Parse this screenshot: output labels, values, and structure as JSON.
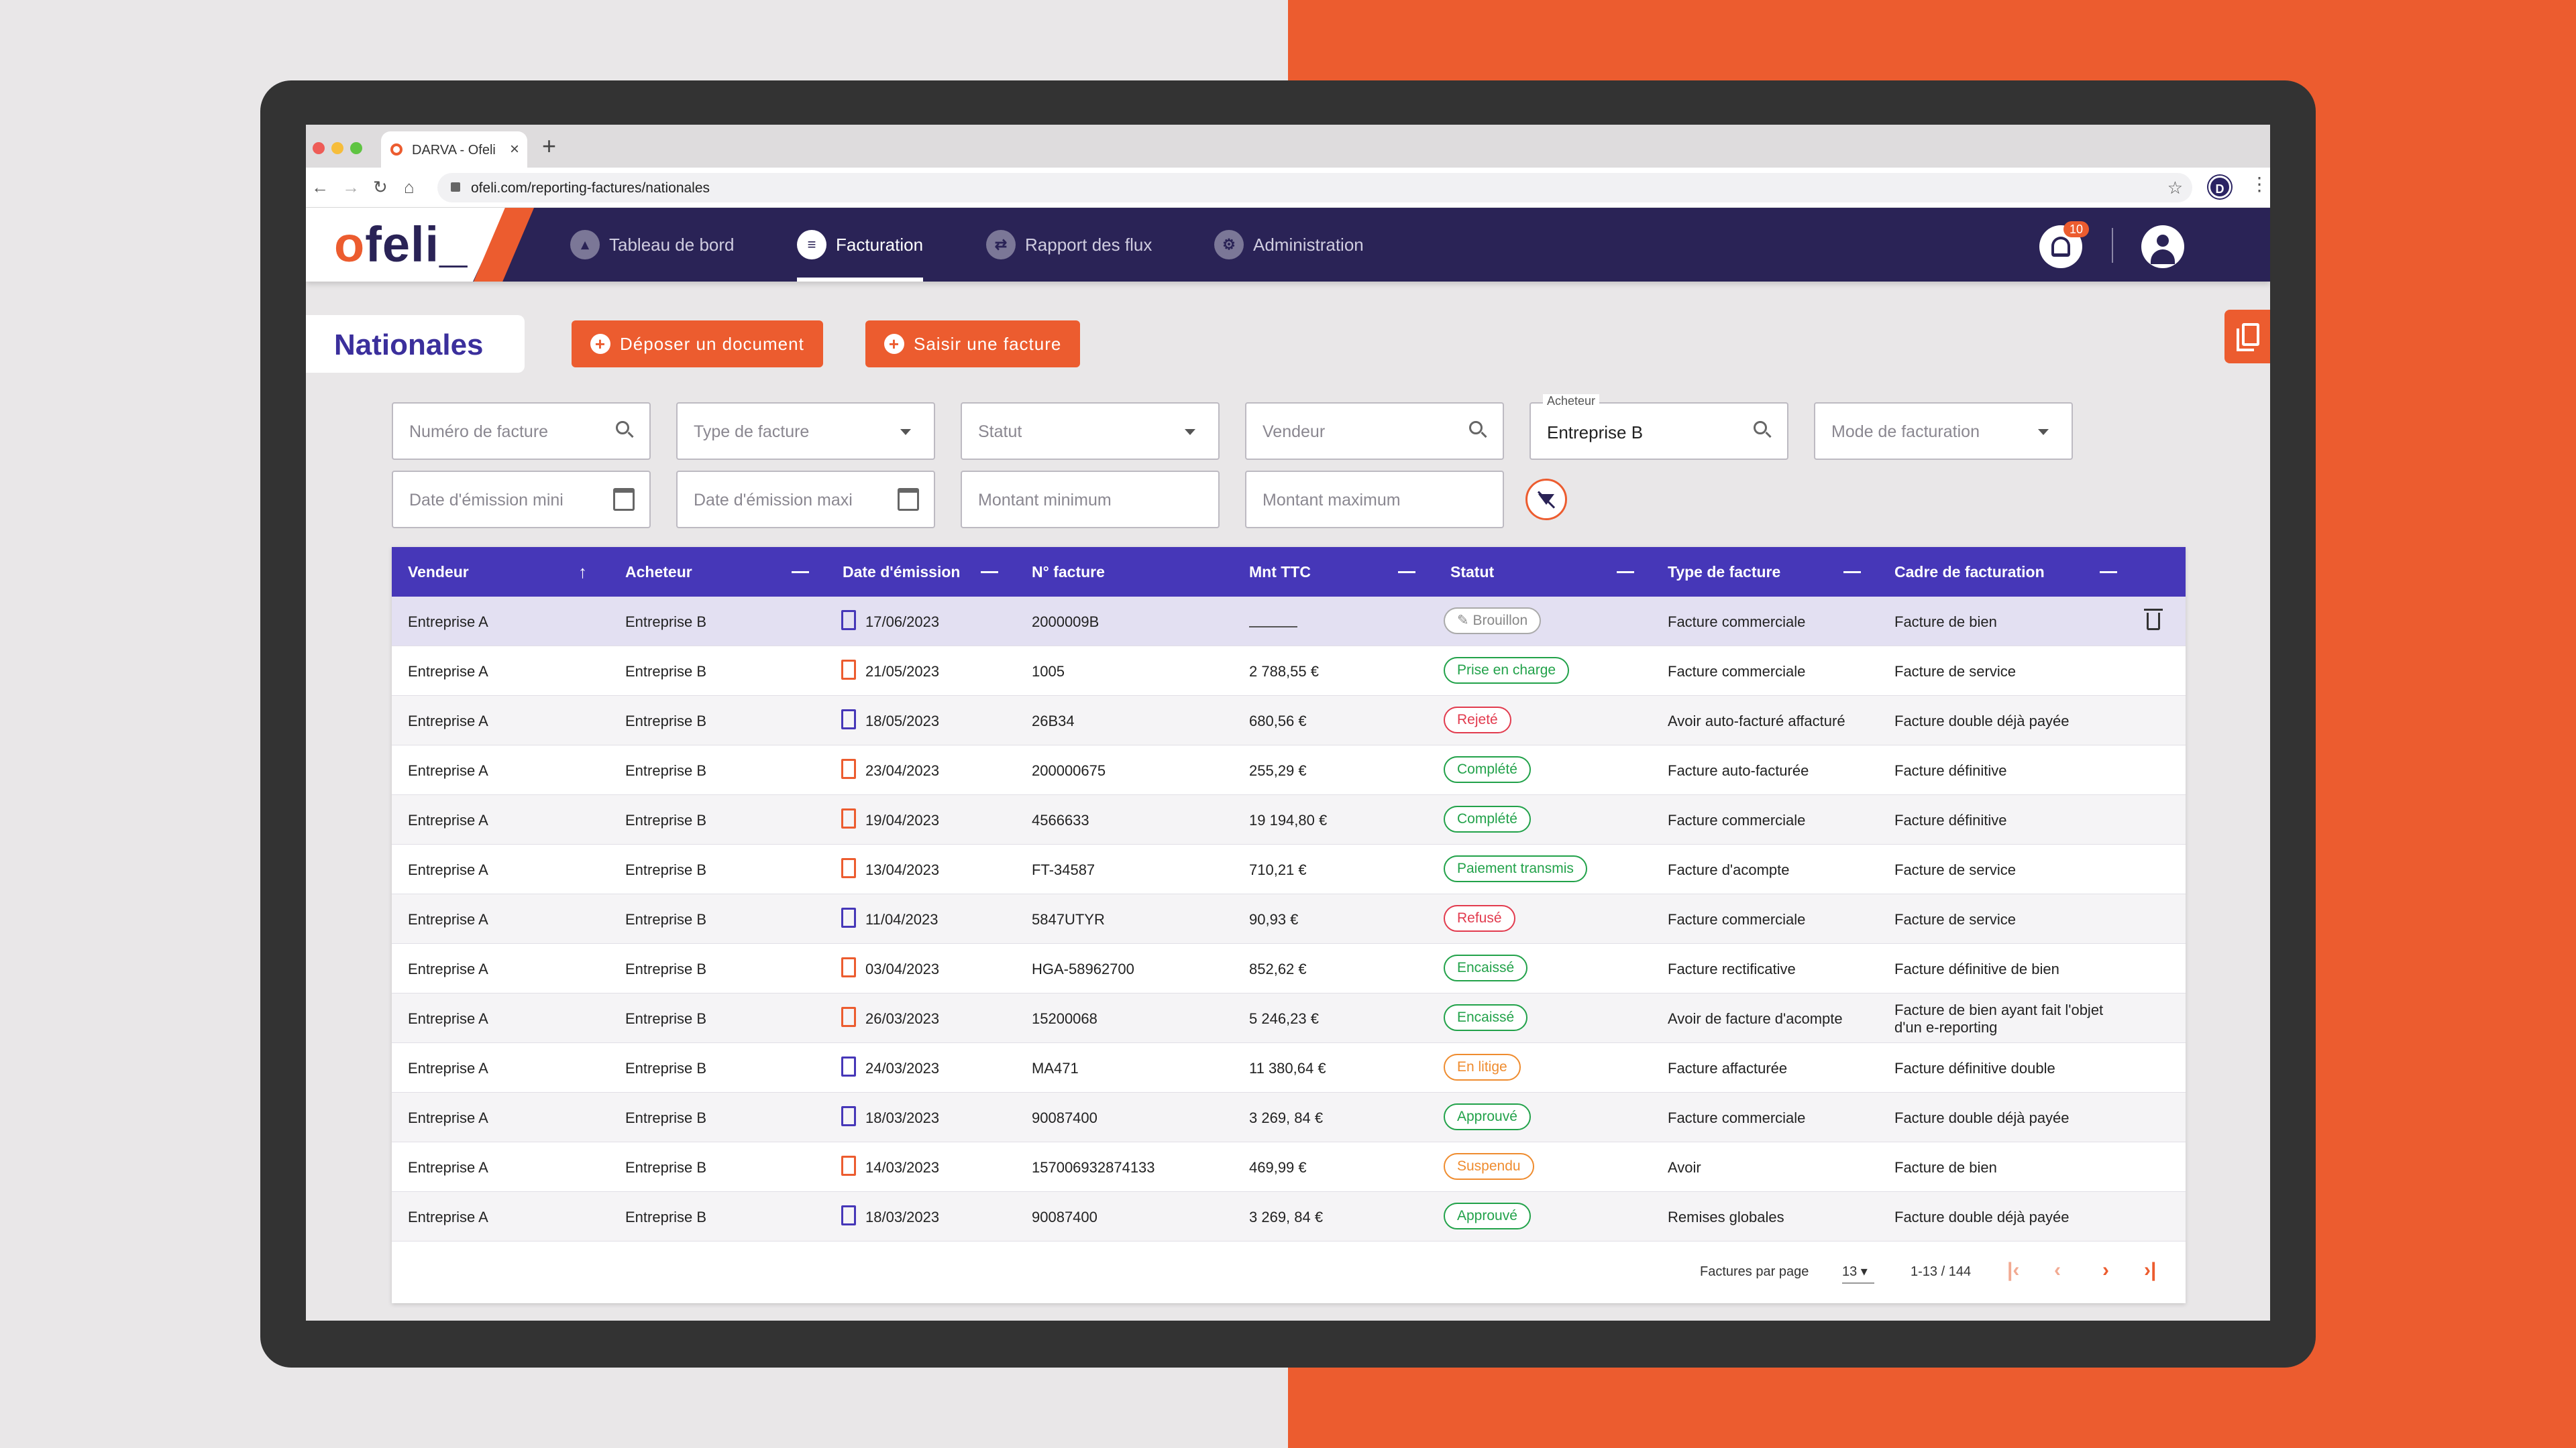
{
  "browser": {
    "tab_title": "DARVA - Ofeli",
    "url": "ofeli.com/reporting-factures/nationales",
    "profile_initial": "D"
  },
  "app": {
    "logo_o": "o",
    "logo_rest": "feli_",
    "nav": [
      {
        "label": "Tableau de bord",
        "icon": "chart-icon"
      },
      {
        "label": "Facturation",
        "icon": "invoice-icon",
        "active": true
      },
      {
        "label": "Rapport des flux",
        "icon": "exchange-icon"
      },
      {
        "label": "Administration",
        "icon": "admin-user-icon"
      }
    ],
    "notifications_count": "10"
  },
  "page": {
    "title": "Nationales",
    "btn_upload": "Déposer un document",
    "btn_enter": "Saisir une facture"
  },
  "filters": {
    "invoice_number_ph": "Numéro de facture",
    "invoice_type_ph": "Type de facture",
    "status_ph": "Statut",
    "seller_ph": "Vendeur",
    "buyer_label": "Acheteur",
    "buyer_value": "Entreprise B",
    "billing_mode_ph": "Mode de facturation",
    "date_min_ph": "Date d'émission mini",
    "date_max_ph": "Date d'émission maxi",
    "amount_min_ph": "Montant minimum",
    "amount_max_ph": "Montant maximum"
  },
  "table": {
    "headers": [
      "Vendeur",
      "Acheteur",
      "Date d'émission",
      "N° facture",
      "Mnt TTC",
      "Statut",
      "Type de facture",
      "Cadre de facturation"
    ],
    "rows": [
      {
        "vendeur": "Entreprise A",
        "acheteur": "Entreprise B",
        "date": "17/06/2023",
        "num": "2000009B",
        "mnt": "",
        "statut": "Brouillon",
        "type": "Facture commerciale",
        "cadre": "Facture de bien"
      },
      {
        "vendeur": "Entreprise A",
        "acheteur": "Entreprise B",
        "date": "21/05/2023",
        "num": "1005",
        "mnt": "2 788,55 €",
        "statut": "Prise en charge",
        "type": "Facture commerciale",
        "cadre": "Facture de service"
      },
      {
        "vendeur": "Entreprise A",
        "acheteur": "Entreprise B",
        "date": "18/05/2023",
        "num": "26B34",
        "mnt": "680,56 €",
        "statut": "Rejeté",
        "type": "Avoir auto-facturé affacturé",
        "cadre": "Facture double déjà payée"
      },
      {
        "vendeur": "Entreprise A",
        "acheteur": "Entreprise B",
        "date": "23/04/2023",
        "num": "200000675",
        "mnt": "255,29 €",
        "statut": "Complété",
        "type": "Facture auto-facturée",
        "cadre": "Facture définitive"
      },
      {
        "vendeur": "Entreprise A",
        "acheteur": "Entreprise B",
        "date": "19/04/2023",
        "num": "4566633",
        "mnt": "19 194,80 €",
        "statut": "Complété",
        "type": "Facture commerciale",
        "cadre": "Facture définitive"
      },
      {
        "vendeur": "Entreprise A",
        "acheteur": "Entreprise B",
        "date": "13/04/2023",
        "num": "FT-34587",
        "mnt": "710,21 €",
        "statut": "Paiement transmis",
        "type": "Facture d'acompte",
        "cadre": "Facture de service"
      },
      {
        "vendeur": "Entreprise A",
        "acheteur": "Entreprise B",
        "date": "11/04/2023",
        "num": "5847UTYR",
        "mnt": "90,93 €",
        "statut": "Refusé",
        "type": "Facture commerciale",
        "cadre": "Facture de service"
      },
      {
        "vendeur": "Entreprise A",
        "acheteur": "Entreprise B",
        "date": "03/04/2023",
        "num": "HGA-58962700",
        "mnt": "852,62 €",
        "statut": "Encaissé",
        "type": "Facture rectificative",
        "cadre": "Facture définitive de bien"
      },
      {
        "vendeur": "Entreprise A",
        "acheteur": "Entreprise B",
        "date": "26/03/2023",
        "num": "15200068",
        "mnt": "5 246,23 €",
        "statut": "Encaissé",
        "type": "Avoir de facture d'acompte",
        "cadre": "Facture de bien ayant fait l'objet d'un e-reporting"
      },
      {
        "vendeur": "Entreprise A",
        "acheteur": "Entreprise B",
        "date": "24/03/2023",
        "num": "MA471",
        "mnt": "11 380,64 €",
        "statut": "En litige",
        "type": "Facture affacturée",
        "cadre": "Facture définitive double"
      },
      {
        "vendeur": "Entreprise A",
        "acheteur": "Entreprise B",
        "date": "18/03/2023",
        "num": "90087400",
        "mnt": "3 269, 84 €",
        "statut": "Approuvé",
        "type": "Facture commerciale",
        "cadre": "Facture double déjà payée"
      },
      {
        "vendeur": "Entreprise A",
        "acheteur": "Entreprise B",
        "date": "14/03/2023",
        "num": "157006932874133",
        "mnt": "469,99 €",
        "statut": "Suspendu",
        "type": "Avoir",
        "cadre": "Facture de bien"
      },
      {
        "vendeur": "Entreprise A",
        "acheteur": "Entreprise B",
        "date": "18/03/2023",
        "num": "90087400",
        "mnt": "3 269, 84 €",
        "statut": "Approuvé",
        "type": "Remises globales",
        "cadre": "Facture double déjà payée"
      }
    ]
  },
  "pagination": {
    "per_page_label": "Factures par page",
    "per_page_value": "13",
    "range": "1-13 / 144"
  },
  "colors": {
    "brand_orange": "#ec5c2f",
    "brand_navy": "#2a2356",
    "table_header": "#4637b8"
  }
}
